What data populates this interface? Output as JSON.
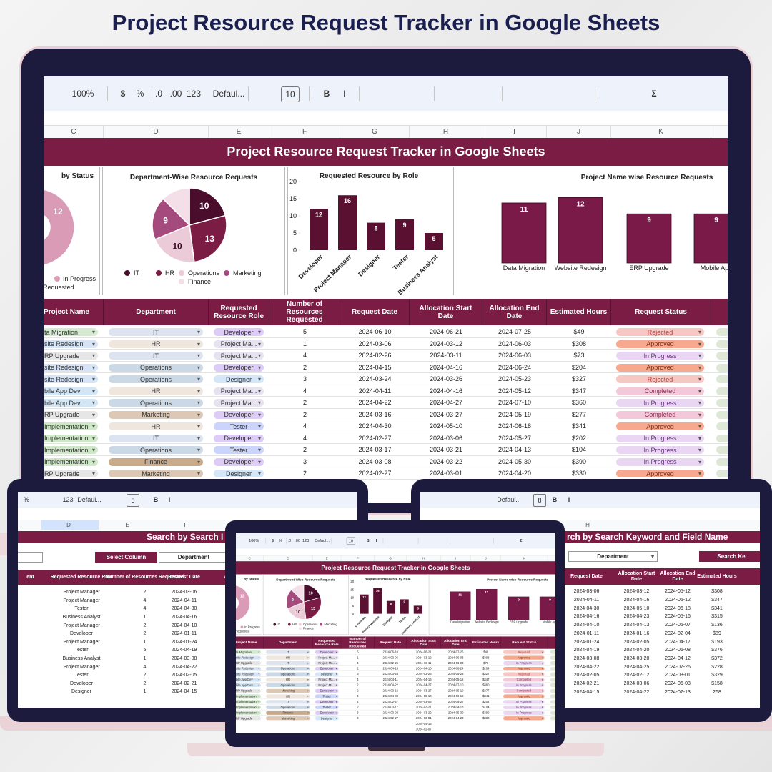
{
  "title": "Project Resource Request Tracker in Google Sheets",
  "main": {
    "toolbar": [
      "100%",
      "$",
      "%",
      ".0",
      ".00",
      "123",
      "Defaul...",
      "10",
      "B",
      "I",
      "Σ"
    ],
    "columns": [
      "C",
      "D",
      "E",
      "F",
      "G",
      "H",
      "I",
      "J",
      "K"
    ],
    "sheet_title": "Project Resource Request Tracker in Google Sheets",
    "table": {
      "headers": [
        "Project Name",
        "Department",
        "Requested Resource Role",
        "Number of Resources Requested",
        "Request Date",
        "Allocation Start Date",
        "Allocation End Date",
        "Estimated Hours",
        "Request Status"
      ],
      "rows": [
        [
          "ta Migration",
          "IT",
          "Developer",
          5,
          "2024-06-10",
          "2024-06-21",
          "2024-07-25",
          "$49",
          "Rejected"
        ],
        [
          "site Redesign",
          "HR",
          "Project Ma...",
          1,
          "2024-03-06",
          "2024-03-12",
          "2024-06-03",
          "$308",
          "Approved"
        ],
        [
          "RP Upgrade",
          "IT",
          "Project Ma...",
          4,
          "2024-02-26",
          "2024-03-11",
          "2024-06-03",
          "$73",
          "In Progress"
        ],
        [
          "site Redesign",
          "Operations",
          "Developer",
          2,
          "2024-04-15",
          "2024-04-16",
          "2024-06-24",
          "$204",
          "Approved"
        ],
        [
          "site Redesign",
          "Operations",
          "Designer",
          3,
          "2024-03-24",
          "2024-03-26",
          "2024-05-23",
          "$327",
          "Rejected"
        ],
        [
          "bile App Dev",
          "HR",
          "Project Ma...",
          4,
          "2024-04-11",
          "2024-04-16",
          "2024-05-12",
          "$347",
          "Completed"
        ],
        [
          "bile App Dev",
          "Operations",
          "Project Ma...",
          2,
          "2024-04-22",
          "2024-04-27",
          "2024-07-10",
          "$360",
          "In Progress"
        ],
        [
          "RP Upgrade",
          "Marketing",
          "Developer",
          2,
          "2024-03-16",
          "2024-03-27",
          "2024-05-19",
          "$277",
          "Completed"
        ],
        [
          "Implementation",
          "HR",
          "Tester",
          4,
          "2024-04-30",
          "2024-05-10",
          "2024-06-18",
          "$341",
          "Approved"
        ],
        [
          "Implementation",
          "IT",
          "Developer",
          4,
          "2024-02-27",
          "2024-03-06",
          "2024-05-27",
          "$202",
          "In Progress"
        ],
        [
          "Implementation",
          "Operations",
          "Tester",
          2,
          "2024-03-17",
          "2024-03-21",
          "2024-04-13",
          "$104",
          "In Progress"
        ],
        [
          "Implementation",
          "Finance",
          "Developer",
          3,
          "2024-03-08",
          "2024-03-22",
          "2024-05-30",
          "$390",
          "In Progress"
        ],
        [
          "RP Upgrade",
          "Marketing",
          "Designer",
          2,
          "2024-02-27",
          "2024-03-01",
          "2024-04-20",
          "$330",
          "Approved"
        ]
      ],
      "extra_start_dates": [
        "2024-04-16",
        "2024-02-07"
      ]
    }
  },
  "chart_data": [
    {
      "type": "donut",
      "title": "by Status",
      "categories": [
        "In Progress",
        "Requested"
      ],
      "values": [
        12,
        7
      ],
      "colors": [
        "#d99bb5",
        "#7b1c45"
      ]
    },
    {
      "type": "pie",
      "title": "Department-Wise Resource Requests",
      "categories": [
        "IT",
        "HR",
        "Operations",
        "Marketing",
        "Finance"
      ],
      "values": [
        10,
        13,
        10,
        9,
        6
      ],
      "value_labels": [
        "10",
        "13",
        "10",
        "9",
        null
      ],
      "colors": [
        "#4a0d2b",
        "#7b1c45",
        "#eccbd8",
        "#a44a7c",
        "#f4dfe8"
      ]
    },
    {
      "type": "bar",
      "title": "Requested Resource  by Role",
      "categories": [
        "Developer",
        "Project Manager",
        "Designer",
        "Tester",
        "Business Analyst"
      ],
      "values": [
        12,
        16,
        8,
        9,
        5
      ],
      "color": "#5a1030",
      "ylim": [
        0,
        20
      ],
      "yticks": [
        0,
        5,
        10,
        15,
        20
      ]
    },
    {
      "type": "bar",
      "title": "Project Name wise Resource Requests",
      "categories": [
        "Data Migration",
        "Website Redesign",
        "ERP Upgrade",
        "Mobile App"
      ],
      "values": [
        11,
        12,
        9,
        9
      ],
      "color": "#7a1a48"
    }
  ],
  "left": {
    "toolbar": [
      "%",
      "123",
      "Defaul...",
      "8",
      "B",
      "I"
    ],
    "columns": [
      "D",
      "E",
      "F"
    ],
    "search_title": "Search by Search I",
    "select_label": "Select Column",
    "select_value": "Department",
    "headers": [
      "ent",
      "Requested Resource Role",
      "Number of Resources Requested",
      "Request Date",
      "Allo"
    ],
    "rows": [
      [
        "Project Manager",
        2,
        "2024-03-06"
      ],
      [
        "Project Manager",
        4,
        "2024-04-11"
      ],
      [
        "Tester",
        4,
        "2024-04-30"
      ],
      [
        "Business Analyst",
        1,
        "2024-04-16"
      ],
      [
        "Project Manager",
        2,
        "2024-04-10"
      ],
      [
        "Developer",
        2,
        "2024-01-11"
      ],
      [
        "Project Manager",
        1,
        "2024-01-24"
      ],
      [
        "Tester",
        5,
        "2024-04-19"
      ],
      [
        "Business Analyst",
        1,
        "2024-03-08"
      ],
      [
        "Project Manager",
        4,
        "2024-04-22"
      ],
      [
        "Tester",
        2,
        "2024-02-05"
      ],
      [
        "Developer",
        2,
        "2024-02-21"
      ],
      [
        "Designer",
        1,
        "2024-04-15"
      ]
    ]
  },
  "right": {
    "toolbar": [
      "Defaul...",
      "8",
      "B",
      "I"
    ],
    "columns": [
      "F",
      "G",
      "H"
    ],
    "search_title": "rch by Search Keyword and Field Name",
    "select_value": "Department",
    "search_button": "Search Ke",
    "headers": [
      "Request Date",
      "Allocation Start Date",
      "Allocation End Date",
      "Estimated Hours"
    ],
    "rows": [
      [
        "2024-03-06",
        "2024-03-12",
        "2024-05-12",
        "$308"
      ],
      [
        "2024-04-11",
        "2024-04-16",
        "2024-05-12",
        "$347"
      ],
      [
        "2024-04-30",
        "2024-05-10",
        "2024-06-18",
        "$341"
      ],
      [
        "2024-04-16",
        "2024-04-23",
        "2024-05-16",
        "$315"
      ],
      [
        "2024-04-10",
        "2024-04-13",
        "2024-05-07",
        "$136"
      ],
      [
        "2024-01-11",
        "2024-01-16",
        "2024-02-04",
        "$89"
      ],
      [
        "2024-01-24",
        "2024-02-05",
        "2024-04-17",
        "$193"
      ],
      [
        "2024-04-19",
        "2024-04-20",
        "2024-05-08",
        "$376"
      ],
      [
        "2024-03-08",
        "2024-03-20",
        "2024-04-12",
        "$372"
      ],
      [
        "2024-04-22",
        "2024-04-25",
        "2024-07-26",
        "$228"
      ],
      [
        "2024-02-05",
        "2024-02-12",
        "2024-03-01",
        "$329"
      ],
      [
        "2024-02-21",
        "2024-03-06",
        "2024-06-03",
        "$158"
      ],
      [
        "2024-04-15",
        "2024-04-22",
        "2024-07-13",
        "268"
      ]
    ]
  }
}
